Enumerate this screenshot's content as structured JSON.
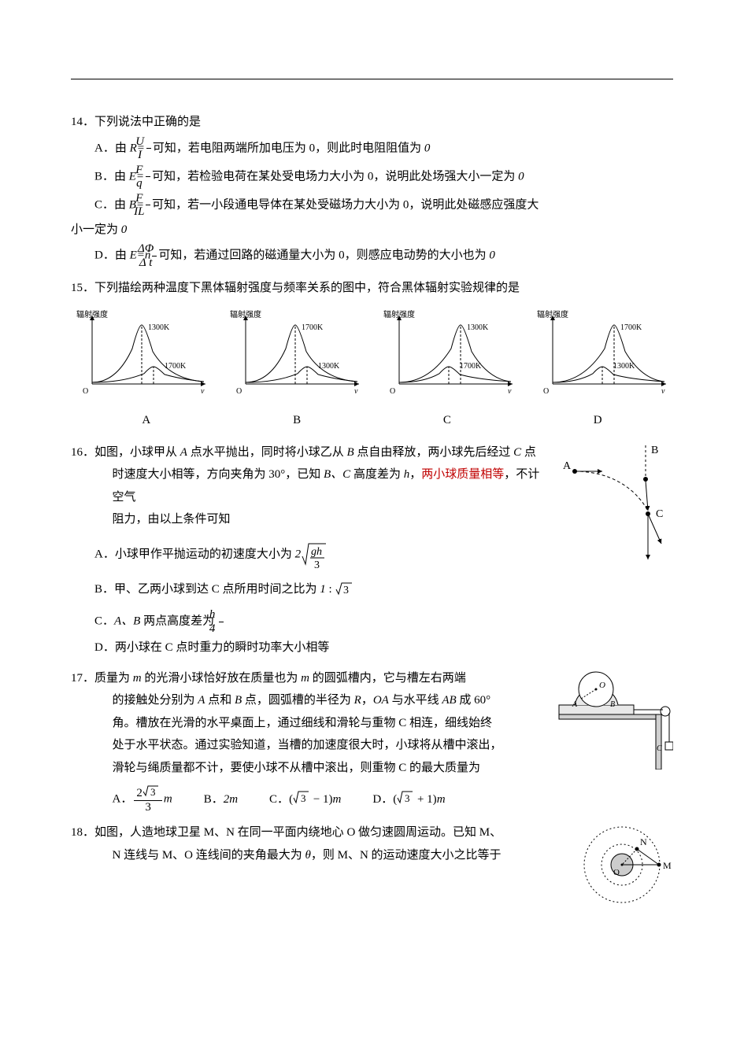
{
  "q14": {
    "num": "14．",
    "stem": "下列说法中正确的是",
    "optA_pre": "A．由 ",
    "optA_eq_lhs": "R=",
    "optA_eq_num": "U",
    "optA_eq_den": "I",
    "optA_post": "可知，若电阻两端所加电压为 0，则此时电阻阻值为 ",
    "optA_tail": "0",
    "optB_pre": "B．由 ",
    "optB_eq_lhs": "E=",
    "optB_eq_num": "F",
    "optB_eq_den": "q",
    "optB_post": "可知，若检验电荷在某处受电场力大小为 0，说明此处场强大小一定为 ",
    "optB_tail": "0",
    "optC_pre": "C．由 ",
    "optC_eq_lhs": "B=",
    "optC_eq_num": "F",
    "optC_eq_den": "IL",
    "optC_post": "可知，若一小段通电导体在某处受磁场力大小为 0，说明此处磁感应强度大",
    "optC_line2": "小一定为 ",
    "optC_tail": "0",
    "optD_pre": "D．由 ",
    "optD_eq_lhs": "E=n",
    "optD_eq_num": "ΔΦ",
    "optD_eq_den": "Δ t",
    "optD_post": "可知，若通过回路的磁通量大小为 0，则感应电动势的大小也为 ",
    "optD_tail": "0"
  },
  "q15": {
    "num": "15．",
    "stem": "下列描绘两种温度下黑体辐射强度与频率关系的图中，符合黑体辐射实验规律的是",
    "ylabel": "辐射强度",
    "xlabel": "ν",
    "origin": "O",
    "charts": [
      {
        "top": "1300K",
        "bot": "1700K",
        "topPeakX": 85,
        "botPeakX": 100,
        "topH": 75,
        "botH": 22
      },
      {
        "top": "1700K",
        "bot": "1300K",
        "topPeakX": 85,
        "botPeakX": 100,
        "topH": 75,
        "botH": 22
      },
      {
        "top": "1300K",
        "bot": "1700K",
        "topPeakX": 100,
        "botPeakX": 85,
        "topH": 75,
        "botH": 22
      },
      {
        "top": "1700K",
        "bot": "1300K",
        "topPeakX": 100,
        "botPeakX": 85,
        "topH": 75,
        "botH": 22
      }
    ],
    "labels": [
      "A",
      "B",
      "C",
      "D"
    ],
    "style": {
      "axis_color": "#000",
      "curve_color": "#000",
      "dash_color": "#000",
      "bg": "#ffffff",
      "label_fontsize": 10,
      "width": 170,
      "height": 115
    }
  },
  "q16": {
    "num": "16．",
    "stem1": "如图，小球甲从 ",
    "a": "A",
    "stem2": " 点水平抛出，同时将小球乙从 ",
    "b": "B",
    "stem3": " 点自由释放，两小球先后经过 ",
    "c": "C",
    "stem4": " 点",
    "line2a": "时速度大小相等，方向夹角为 30°，已知 ",
    "bc": "B、C",
    "line2b": " 高度差为 ",
    "h": "h",
    "line2c": "，",
    "red_text": "两小球质量相等",
    "line2d": "，不计空气",
    "line3": "阻力，由以上条件可知",
    "optA_pre": "A．小球甲作平抛运动的初速度大小为 ",
    "optA_coef": "2",
    "optA_num": "gh",
    "optA_den": "3",
    "optB_pre": "B．甲、乙两小球到达 C 点所用时间之比为 ",
    "optB_ratio_a": "1",
    "optB_ratio_sep": " : ",
    "optB_ratio_b": "3",
    "optC_pre": "C．",
    "optC_ab": "A、B",
    "optC_mid": " 两点高度差为 ",
    "optC_num": "h",
    "optC_den": "4",
    "optD": "D．两小球在 C 点时重力的瞬时功率大小相等",
    "fig": {
      "A": "A",
      "B": "B",
      "C": "C"
    }
  },
  "q17": {
    "num": "17．",
    "stem_l1_a": "质量为 ",
    "m": "m",
    "stem_l1_b": " 的光滑小球恰好放在质量也为 ",
    "stem_l1_c": " 的圆弧槽内，它与槽左右两端",
    "stem_l2_a": "的接触处分别为 ",
    "A": "A",
    "stem_l2_b": " 点和 ",
    "B": "B",
    "stem_l2_c": " 点，圆弧槽的半径为 ",
    "R": "R",
    "stem_l2_d": "，",
    "OA": "OA",
    "stem_l2_e": " 与水平线 ",
    "AB": "AB",
    "stem_l2_f": " 成 60°",
    "stem_l3": "角。槽放在光滑的水平桌面上，通过细线和滑轮与重物 C 相连，细线始终",
    "stem_l4": "处于水平状态。通过实验知道，当槽的加速度很大时，小球将从槽中滚出，",
    "stem_l5": "滑轮与绳质量都不计，要使小球不从槽中滚出，则重物 C 的最大质量为",
    "optA_num": "2",
    "optA_rad": "3",
    "optA_den": "3",
    "optA_m": "m",
    "optB": "2m",
    "optC_a": "(",
    "optC_rad": "3",
    "optC_b": " − 1)",
    "optC_m": "m",
    "optD_a": "(",
    "optD_rad": "3",
    "optD_b": " + 1)",
    "optD_m": "m",
    "labels": {
      "A": "A．",
      "B": "B．",
      "C": "C．",
      "D": "D．"
    },
    "fig": {
      "O": "O",
      "A": "A",
      "B": "B",
      "C": "C"
    }
  },
  "q18": {
    "num": "18．",
    "stem_l1": "如图，人造地球卫星 M、N 在同一平面内绕地心 O 做匀速圆周运动。已知 M、",
    "stem_l2_a": "N 连线与 M、O 连线间的夹角最大为 ",
    "theta": "θ",
    "stem_l2_b": "，则 M、N 的运动速度大小之比等于",
    "fig": {
      "O": "O",
      "M": "M",
      "N": "N"
    }
  }
}
